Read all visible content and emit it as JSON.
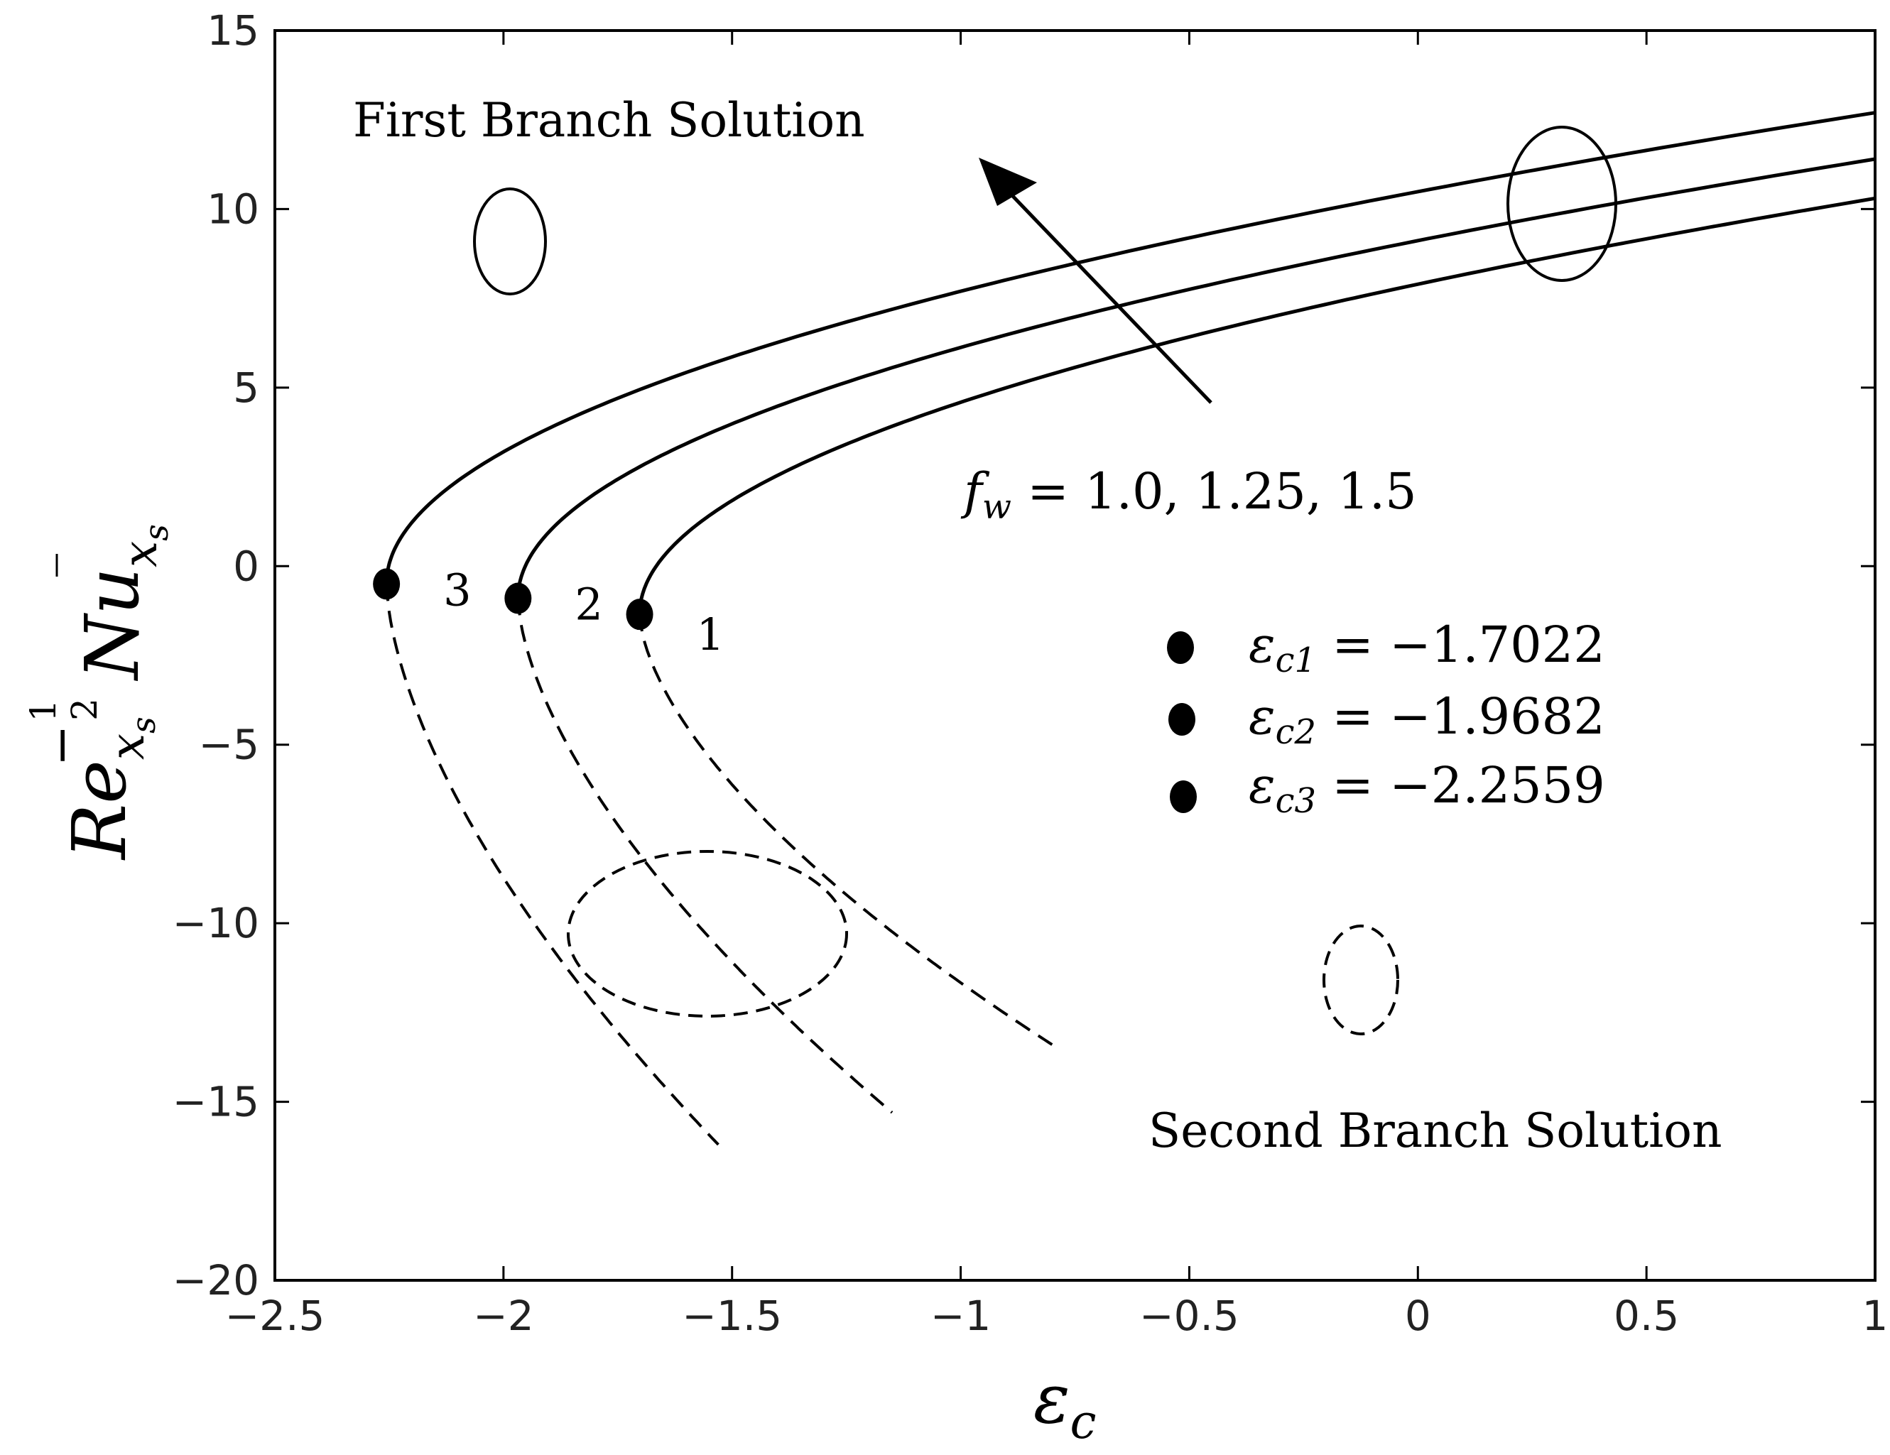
{
  "chart_data": {
    "type": "line",
    "title": "",
    "xlabel": {
      "base": "ε",
      "sub": "c"
    },
    "ylabel": {
      "base": "Re",
      "sub1": "x",
      "subsub": "s",
      "exp_minus": "−",
      "exp_num": "1",
      "exp_den": "2",
      "nu": "Nu",
      "sub2": "x",
      "subsub2": "s"
    },
    "xlim": [
      -2.5,
      1
    ],
    "ylim": [
      -20,
      15
    ],
    "x_ticks": [
      -2.5,
      -2,
      -1.5,
      -1,
      -0.5,
      0,
      0.5,
      1
    ],
    "y_ticks": [
      -20,
      -15,
      -10,
      -5,
      0,
      5,
      10,
      15
    ],
    "x_tick_labels": [
      "−2.5",
      "−2",
      "−1.5",
      "−1",
      "−0.5",
      "0",
      "0.5",
      "1"
    ],
    "y_tick_labels": [
      "−20",
      "−15",
      "−10",
      "−5",
      "0",
      "5",
      "10",
      "15"
    ],
    "grid": false,
    "series": [
      {
        "label": "1",
        "critical": {
          "x": -1.7022,
          "y": -1.35
        },
        "first_branch": {
          "x_end": 1.0,
          "y_end": 10.3
        },
        "second_branch": {
          "x_end": -0.8,
          "y_end": -13.4
        }
      },
      {
        "label": "2",
        "critical": {
          "x": -1.9682,
          "y": -0.9
        },
        "first_branch": {
          "x_end": 1.0,
          "y_end": 11.4
        },
        "second_branch": {
          "x_end": -1.15,
          "y_end": -15.3
        }
      },
      {
        "label": "3",
        "critical": {
          "x": -2.2559,
          "y": -0.5
        },
        "first_branch": {
          "x_end": 1.0,
          "y_end": 12.7
        },
        "second_branch": {
          "x_end": -1.53,
          "y_end": -16.2
        }
      }
    ],
    "annotations": {
      "first_branch_text": "First Branch Solution",
      "second_branch_text": "Second Branch Solution",
      "fw_text": {
        "var": "f",
        "sub": "w",
        "rest": " = 1.0, 1.25, 1.5"
      },
      "legend": [
        {
          "var": "ε",
          "sub": "c1",
          "rest": " = −1.7022"
        },
        {
          "var": "ε",
          "sub": "c2",
          "rest": " = −1.9682"
        },
        {
          "var": "ε",
          "sub": "c3",
          "rest": " = −2.2559"
        }
      ],
      "legend_placement": "center-right"
    }
  }
}
